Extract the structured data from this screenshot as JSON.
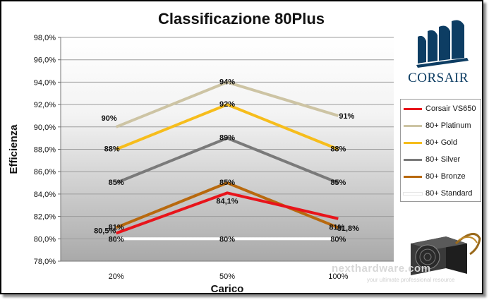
{
  "chart_data": {
    "type": "line",
    "title": "Classificazione 80Plus",
    "xlabel": "Carico",
    "ylabel": "Efficienza",
    "categories": [
      "20%",
      "50%",
      "100%"
    ],
    "ylim": [
      78,
      98
    ],
    "yticks": [
      "78,0%",
      "80,0%",
      "82,0%",
      "84,0%",
      "86,0%",
      "88,0%",
      "90,0%",
      "92,0%",
      "94,0%",
      "96,0%",
      "98,0%"
    ],
    "grid": true,
    "legend_position": "right",
    "series": [
      {
        "name": "Corsair VS650",
        "color": "#e8141b",
        "values": [
          80.5,
          84.1,
          81.8
        ],
        "labels": [
          "80,5%",
          "84,1%",
          "81,8%"
        ]
      },
      {
        "name": "80+ Platinum",
        "color": "#cdc4a4",
        "values": [
          90,
          94,
          91
        ],
        "labels": [
          "90%",
          "94%",
          "91%"
        ]
      },
      {
        "name": "80+ Gold",
        "color": "#f6bd1c",
        "values": [
          88,
          92,
          88
        ],
        "labels": [
          "88%",
          "92%",
          "88%"
        ]
      },
      {
        "name": "80+ Silver",
        "color": "#7a7a7a",
        "values": [
          85,
          89,
          85
        ],
        "labels": [
          "85%",
          "89%",
          "85%"
        ]
      },
      {
        "name": "80+ Bronze",
        "color": "#b8690e",
        "values": [
          81,
          85,
          81
        ],
        "labels": [
          "81%",
          "85%",
          "81%"
        ]
      },
      {
        "name": "80+ Standard",
        "color": "#ffffff",
        "values": [
          80,
          80,
          80
        ],
        "labels": [
          "80%",
          "80%",
          "80%"
        ]
      }
    ]
  },
  "brand_text": "CORSAIR",
  "watermark": "nexthardware.com",
  "watermark_sub": "your ultimate professional resource"
}
